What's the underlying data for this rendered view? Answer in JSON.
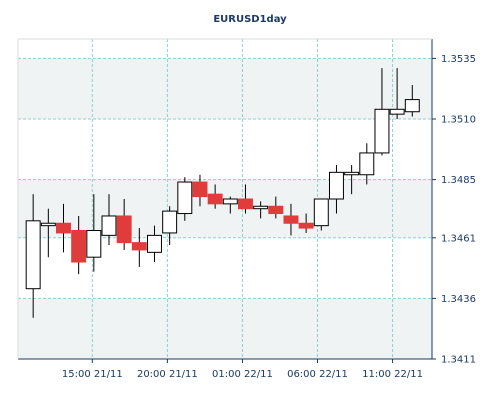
{
  "chart_data": {
    "type": "candlestick",
    "title": "EURUSD1day",
    "colors": {
      "background": "#ffffff",
      "plot_background": "#ffffff",
      "band_fill": "#f0f3f3",
      "grid": "#8ccfcf",
      "axis": "#1c3a63",
      "text": "#1c3a63",
      "up_fill": "#ffffff",
      "down_fill": "#e03c3c",
      "wick": "#000000"
    },
    "grid": true,
    "y_axis_position": "right",
    "ylim": [
      1.3411,
      1.3543
    ],
    "yticks": [
      {
        "value": 1.3411,
        "label": "1.3411"
      },
      {
        "value": 1.3436,
        "label": "1.3436"
      },
      {
        "value": 1.3461,
        "label": "1.3461"
      },
      {
        "value": 1.3485,
        "label": "1.3485"
      },
      {
        "value": 1.351,
        "label": "1.3510"
      },
      {
        "value": 1.3535,
        "label": "1.3535"
      }
    ],
    "x_range": [
      0,
      27.3
    ],
    "xticks": [
      {
        "index": 4.9,
        "label": "15:00 21/11"
      },
      {
        "index": 9.85,
        "label": "20:00 21/11"
      },
      {
        "index": 14.8,
        "label": "01:00 22/11"
      },
      {
        "index": 19.75,
        "label": "06:00 22/11"
      },
      {
        "index": 24.7,
        "label": "11:00 22/11"
      }
    ],
    "candles": [
      {
        "open": 1.344,
        "high": 1.3479,
        "low": 1.3428,
        "close": 1.3468
      },
      {
        "open": 1.3466,
        "high": 1.3473,
        "low": 1.3453,
        "close": 1.3467
      },
      {
        "open": 1.3467,
        "high": 1.3475,
        "low": 1.3455,
        "close": 1.3463
      },
      {
        "open": 1.3464,
        "high": 1.347,
        "low": 1.3446,
        "close": 1.3451
      },
      {
        "open": 1.3453,
        "high": 1.3479,
        "low": 1.3447,
        "close": 1.3464
      },
      {
        "open": 1.3462,
        "high": 1.3479,
        "low": 1.3458,
        "close": 1.347
      },
      {
        "open": 1.347,
        "high": 1.3477,
        "low": 1.3456,
        "close": 1.3459
      },
      {
        "open": 1.3459,
        "high": 1.3465,
        "low": 1.3449,
        "close": 1.3456
      },
      {
        "open": 1.3455,
        "high": 1.3466,
        "low": 1.3451,
        "close": 1.3462
      },
      {
        "open": 1.3463,
        "high": 1.3474,
        "low": 1.3458,
        "close": 1.3472
      },
      {
        "open": 1.3471,
        "high": 1.3486,
        "low": 1.3468,
        "close": 1.3484
      },
      {
        "open": 1.3484,
        "high": 1.3487,
        "low": 1.3474,
        "close": 1.3478
      },
      {
        "open": 1.3479,
        "high": 1.3483,
        "low": 1.3473,
        "close": 1.3475
      },
      {
        "open": 1.3475,
        "high": 1.3478,
        "low": 1.3471,
        "close": 1.3477
      },
      {
        "open": 1.3477,
        "high": 1.3483,
        "low": 1.3471,
        "close": 1.3473
      },
      {
        "open": 1.3473,
        "high": 1.3476,
        "low": 1.3469,
        "close": 1.3474
      },
      {
        "open": 1.3474,
        "high": 1.3478,
        "low": 1.3469,
        "close": 1.3471
      },
      {
        "open": 1.347,
        "high": 1.3475,
        "low": 1.3462,
        "close": 1.3467
      },
      {
        "open": 1.3467,
        "high": 1.3471,
        "low": 1.3463,
        "close": 1.3465
      },
      {
        "open": 1.3466,
        "high": 1.3477,
        "low": 1.3464,
        "close": 1.3477
      },
      {
        "open": 1.3477,
        "high": 1.3491,
        "low": 1.3471,
        "close": 1.3488
      },
      {
        "open": 1.3487,
        "high": 1.3491,
        "low": 1.3479,
        "close": 1.3488
      },
      {
        "open": 1.3487,
        "high": 1.35,
        "low": 1.3483,
        "close": 1.3496
      },
      {
        "open": 1.3496,
        "high": 1.3531,
        "low": 1.3495,
        "close": 1.3514
      },
      {
        "open": 1.3512,
        "high": 1.3531,
        "low": 1.351,
        "close": 1.3514
      },
      {
        "open": 1.3513,
        "high": 1.3524,
        "low": 1.3511,
        "close": 1.3518
      }
    ]
  }
}
